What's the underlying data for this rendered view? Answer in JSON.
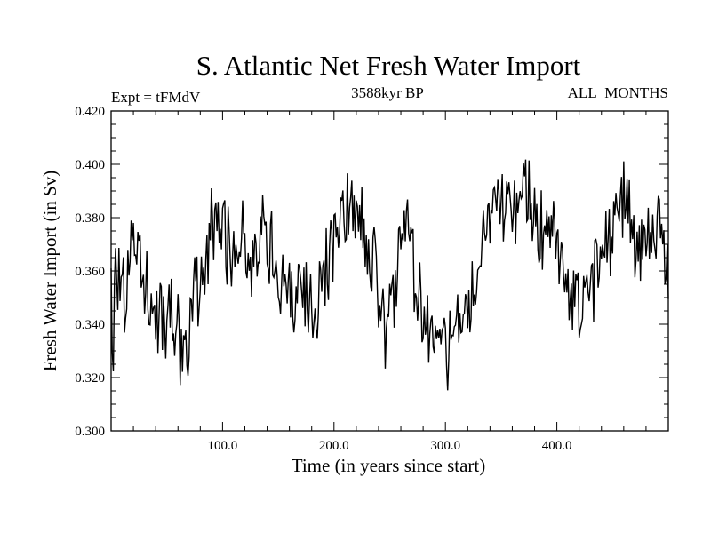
{
  "chart_data": {
    "type": "line",
    "title": "S. Atlantic Net Fresh Water Import",
    "subtitle_left": "Expt = tFMdV",
    "subtitle_center": "3588kyr BP",
    "subtitle_right": "ALL_MONTHS",
    "xlabel": "Time (in years since start)",
    "ylabel": "Fresh Water Import (in Sv)",
    "xlim": [
      0,
      500
    ],
    "ylim": [
      0.3,
      0.42
    ],
    "xticks": [
      100,
      200,
      300,
      400
    ],
    "xtick_labels": [
      "100.0",
      "200.0",
      "300.0",
      "400.0"
    ],
    "yticks": [
      0.3,
      0.32,
      0.34,
      0.36,
      0.38,
      0.4,
      0.42
    ],
    "ytick_labels": [
      "0.300",
      "0.320",
      "0.340",
      "0.360",
      "0.380",
      "0.400",
      "0.420"
    ],
    "grid": false,
    "series": [
      {
        "name": "Net Fresh Water Import",
        "anchors_x": [
          0,
          2,
          4,
          8,
          12,
          16,
          20,
          25,
          30,
          35,
          40,
          45,
          50,
          55,
          60,
          65,
          70,
          75,
          80,
          85,
          90,
          95,
          100,
          105,
          110,
          115,
          120,
          125,
          130,
          135,
          140,
          145,
          150,
          155,
          160,
          165,
          170,
          175,
          180,
          185,
          190,
          195,
          200,
          205,
          210,
          215,
          220,
          225,
          230,
          235,
          240,
          245,
          250,
          255,
          260,
          265,
          270,
          275,
          280,
          285,
          290,
          295,
          300,
          305,
          310,
          315,
          320,
          325,
          330,
          335,
          340,
          345,
          350,
          355,
          360,
          365,
          370,
          375,
          380,
          385,
          390,
          395,
          400,
          405,
          410,
          415,
          420,
          425,
          430,
          435,
          440,
          445,
          450,
          455,
          460,
          465,
          470,
          475,
          480,
          485,
          490,
          495,
          500
        ],
        "anchors_y": [
          0.345,
          0.318,
          0.362,
          0.357,
          0.35,
          0.362,
          0.375,
          0.372,
          0.358,
          0.352,
          0.343,
          0.345,
          0.338,
          0.345,
          0.338,
          0.328,
          0.335,
          0.352,
          0.35,
          0.36,
          0.375,
          0.382,
          0.378,
          0.368,
          0.362,
          0.376,
          0.372,
          0.358,
          0.365,
          0.376,
          0.372,
          0.368,
          0.358,
          0.352,
          0.355,
          0.345,
          0.352,
          0.352,
          0.342,
          0.35,
          0.36,
          0.366,
          0.366,
          0.374,
          0.382,
          0.385,
          0.38,
          0.382,
          0.368,
          0.362,
          0.348,
          0.34,
          0.338,
          0.352,
          0.372,
          0.378,
          0.362,
          0.352,
          0.348,
          0.338,
          0.334,
          0.336,
          0.336,
          0.328,
          0.335,
          0.342,
          0.345,
          0.35,
          0.362,
          0.376,
          0.378,
          0.382,
          0.386,
          0.392,
          0.386,
          0.382,
          0.388,
          0.385,
          0.38,
          0.375,
          0.372,
          0.376,
          0.368,
          0.36,
          0.356,
          0.35,
          0.348,
          0.352,
          0.354,
          0.36,
          0.366,
          0.37,
          0.378,
          0.382,
          0.384,
          0.378,
          0.372,
          0.368,
          0.372,
          0.378,
          0.38,
          0.368,
          0.36
        ],
        "noise_amplitude": 0.014,
        "n_points": 500
      }
    ]
  }
}
